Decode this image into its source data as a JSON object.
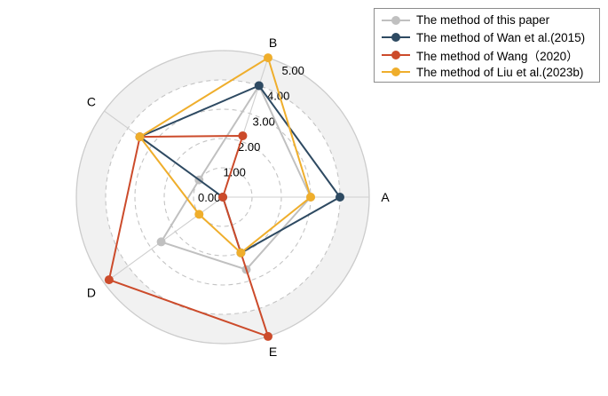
{
  "chart_data": {
    "type": "radar",
    "axes": [
      "A",
      "B",
      "C",
      "D",
      "E"
    ],
    "rlim": [
      0,
      5
    ],
    "rticks": [
      0,
      1,
      2,
      3,
      4,
      5
    ],
    "rtick_labels": [
      "0.00",
      "1.00",
      "2.00",
      "3.00",
      "4.00",
      "5.00"
    ],
    "grid": true,
    "legend_position": "top-right",
    "series": [
      {
        "name": "The method of this paper",
        "color": "#c0c0c0",
        "values": [
          3.0,
          4.0,
          1.0,
          2.6,
          2.6
        ]
      },
      {
        "name": "The method of Wan et al.(2015)",
        "color": "#2e4a62",
        "values": [
          4.0,
          4.0,
          3.5,
          0.0,
          2.0
        ]
      },
      {
        "name": "The method of Wang（2020）",
        "color": "#cc4b2b",
        "values": [
          0.0,
          2.2,
          3.5,
          4.8,
          5.0
        ]
      },
      {
        "name": "The method of Liu et al.(2023b)",
        "color": "#efae2c",
        "values": [
          3.0,
          5.0,
          3.5,
          1.0,
          2.0
        ]
      }
    ]
  }
}
